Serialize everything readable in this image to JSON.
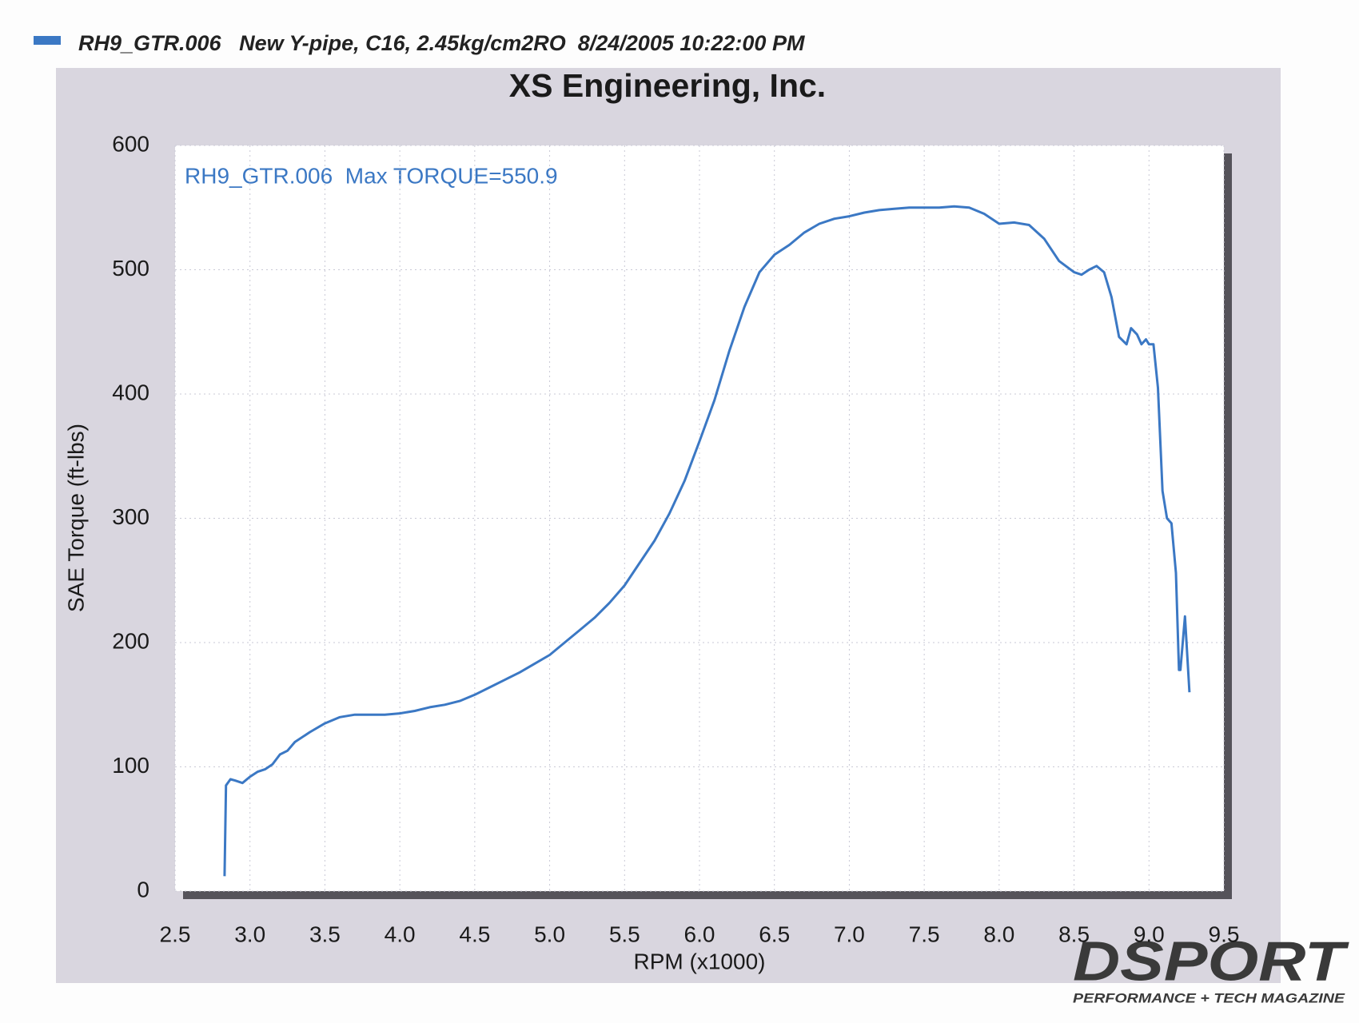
{
  "chart_data": {
    "type": "line",
    "header": "RH9_GTR.006   New Y-pipe, C16, 2.45kg/cm2RO  8/24/2005 10:22:00 PM",
    "title": "XS Engineering, Inc.",
    "annotation": "RH9_GTR.006  Max TORQUE=550.9",
    "x_label": "RPM (x1000)",
    "y_label": "SAE Torque (ft-lbs)",
    "logo": "DSPORT",
    "logo_subtitle": "PERFORMANCE + TECH MAGAZINE",
    "xlim": [
      2.5,
      9.5
    ],
    "xticks": [
      2.5,
      {
        "value": 3,
        "label": "3.0"
      },
      3.5,
      {
        "value": 4,
        "label": "4.0"
      },
      4.5,
      {
        "value": 5,
        "label": "5.0"
      },
      5.5,
      {
        "value": 6,
        "label": "6.0"
      },
      6.5,
      {
        "value": 7,
        "label": "7.0"
      },
      7.5,
      {
        "value": 8,
        "label": "8.0"
      },
      8.5,
      {
        "value": 9,
        "label": "9.0"
      },
      9.5
    ],
    "ylim": [
      0,
      600
    ],
    "yticks": [
      0,
      100,
      200,
      300,
      400,
      500,
      600
    ],
    "grid": true,
    "series": [
      {
        "name": "RH9_GTR.006",
        "color": "#3b78c4",
        "x": [
          2.83,
          2.84,
          2.87,
          2.9,
          2.95,
          3.0,
          3.05,
          3.1,
          3.15,
          3.2,
          3.25,
          3.3,
          3.4,
          3.5,
          3.6,
          3.7,
          3.8,
          3.9,
          4.0,
          4.1,
          4.2,
          4.3,
          4.4,
          4.5,
          4.6,
          4.7,
          4.8,
          4.9,
          5.0,
          5.1,
          5.2,
          5.3,
          5.4,
          5.5,
          5.6,
          5.7,
          5.8,
          5.9,
          6.0,
          6.1,
          6.2,
          6.3,
          6.4,
          6.5,
          6.6,
          6.7,
          6.8,
          6.9,
          7.0,
          7.1,
          7.2,
          7.3,
          7.4,
          7.5,
          7.6,
          7.7,
          7.8,
          7.9,
          8.0,
          8.1,
          8.2,
          8.3,
          8.4,
          8.5,
          8.55,
          8.6,
          8.65,
          8.7,
          8.75,
          8.8,
          8.85,
          8.88,
          8.92,
          8.95,
          8.98,
          9.0,
          9.03,
          9.06,
          9.09,
          9.12,
          9.15,
          9.18,
          9.2,
          9.21,
          9.24,
          9.27
        ],
        "values": [
          12,
          85,
          90,
          89,
          87,
          92,
          96,
          98,
          102,
          110,
          113,
          120,
          128,
          135,
          140,
          142,
          142,
          142,
          143,
          145,
          148,
          150,
          153,
          158,
          164,
          170,
          176,
          183,
          190,
          200,
          210,
          220,
          232,
          246,
          264,
          282,
          304,
          330,
          362,
          395,
          435,
          470,
          498,
          512,
          520,
          530,
          537,
          541,
          543,
          546,
          548,
          549,
          550,
          550,
          550,
          551,
          550,
          545,
          537,
          538,
          536,
          525,
          507,
          498,
          496,
          500,
          503,
          498,
          478,
          446,
          440,
          453,
          448,
          440,
          444,
          440,
          440,
          405,
          322,
          300,
          296,
          256,
          178,
          178,
          221,
          160
        ]
      }
    ]
  }
}
